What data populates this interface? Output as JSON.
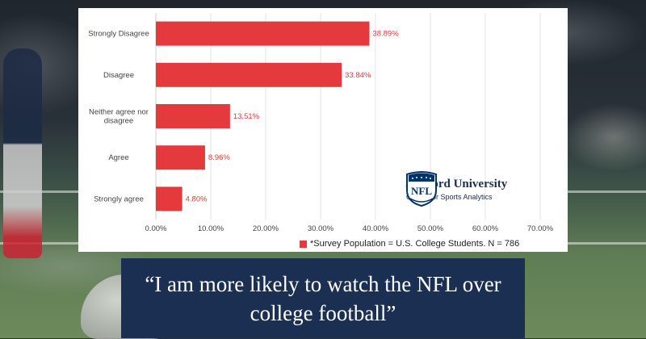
{
  "chart_data": {
    "type": "bar",
    "orientation": "horizontal",
    "categories": [
      "Strongly Disagree",
      "Disagree",
      "Neither agree nor disagree",
      "Agree",
      "Strongly agree"
    ],
    "category_lines": [
      [
        "Strongly Disagree"
      ],
      [
        "Disagree"
      ],
      [
        "Neither agree nor",
        "disagree"
      ],
      [
        "Agree"
      ],
      [
        "Strongly agree"
      ]
    ],
    "values": [
      38.89,
      33.84,
      13.51,
      8.96,
      4.8
    ],
    "value_labels": [
      "38.89%",
      "33.84%",
      "13.51%",
      "8.96%",
      "4.80%"
    ],
    "xlim": [
      0,
      70
    ],
    "x_ticks": [
      "0.00%",
      "10.00%",
      "20.00%",
      "30.00%",
      "40.00%",
      "50.00%",
      "60.00%",
      "70.00%"
    ],
    "bar_color": "#e53a3d",
    "grid": true,
    "legend_position": "bottom",
    "series": [
      {
        "name": "*Survey Population = U.S. College Students. N = 786",
        "values": [
          38.89,
          33.84,
          13.51,
          8.96,
          4.8
        ]
      }
    ]
  },
  "brand": {
    "name": "Samford University",
    "subtitle": "Center for Sports Analytics",
    "logo_text": "NFL",
    "logo_colors": {
      "navy": "#013369",
      "red": "#d50a0a"
    }
  },
  "quote": {
    "line1": "“I am more likely to watch the NFL over",
    "line2": "college football”"
  },
  "colors": {
    "quote_bg": "#1b2f52"
  }
}
